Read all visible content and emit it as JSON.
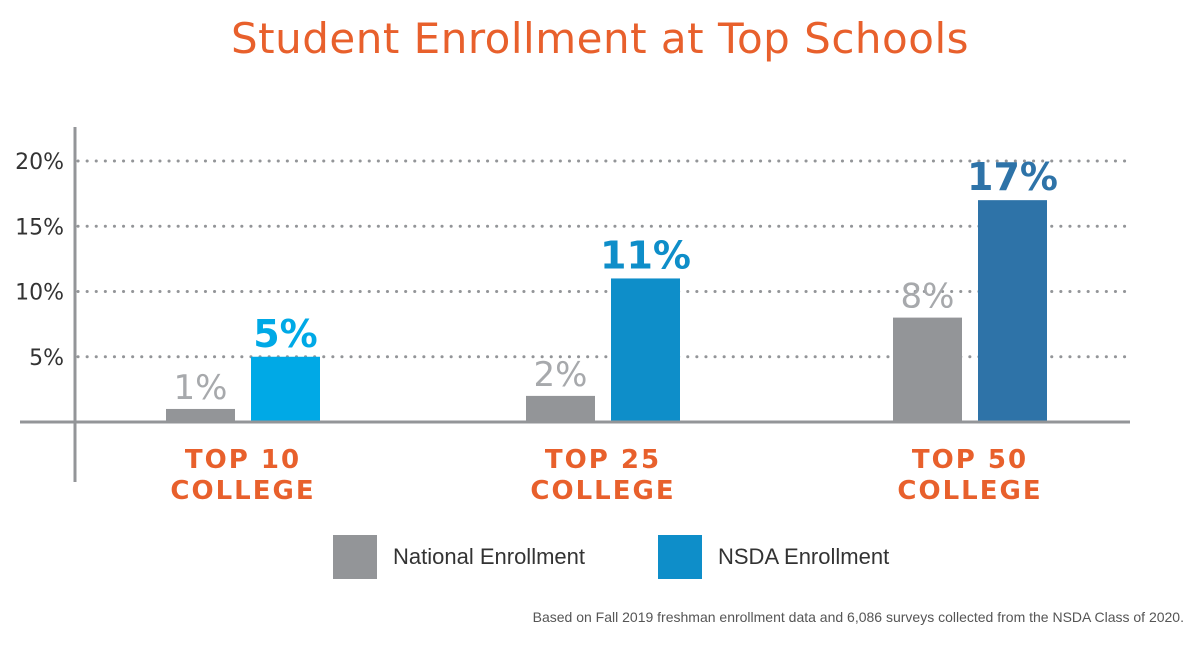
{
  "chart_data": {
    "type": "bar",
    "title": "Student Enrollment at Top Schools",
    "categories": [
      [
        "TOP 10",
        "COLLEGE"
      ],
      [
        "TOP 25",
        "COLLEGE"
      ],
      [
        "TOP 50",
        "COLLEGE"
      ]
    ],
    "series": [
      {
        "name": "National Enrollment",
        "values": [
          1,
          2,
          8
        ],
        "labels": [
          "1%",
          "2%",
          "8%"
        ],
        "color": "#939598",
        "label_color": "#a7a9ac"
      },
      {
        "name": "NSDA Enrollment",
        "values": [
          5,
          11,
          17
        ],
        "labels": [
          "5%",
          "11%",
          "17%"
        ],
        "colors": [
          "#00a9e6",
          "#0e8ec9",
          "#2e73a8"
        ]
      }
    ],
    "ylim": [
      0,
      20
    ],
    "yticks": [
      5,
      10,
      15,
      20
    ],
    "ytick_labels": [
      "5%",
      "10%",
      "15%",
      "20%"
    ],
    "grid": true,
    "legend": "bottom",
    "legend_color_nsda": "#0e8ec9",
    "title_color": "#e8602c",
    "category_color": "#e8602c",
    "footnote": "Based on  Fall 2019 freshman enrollment data and 6,086 surveys collected from the NSDA Class of 2020."
  }
}
